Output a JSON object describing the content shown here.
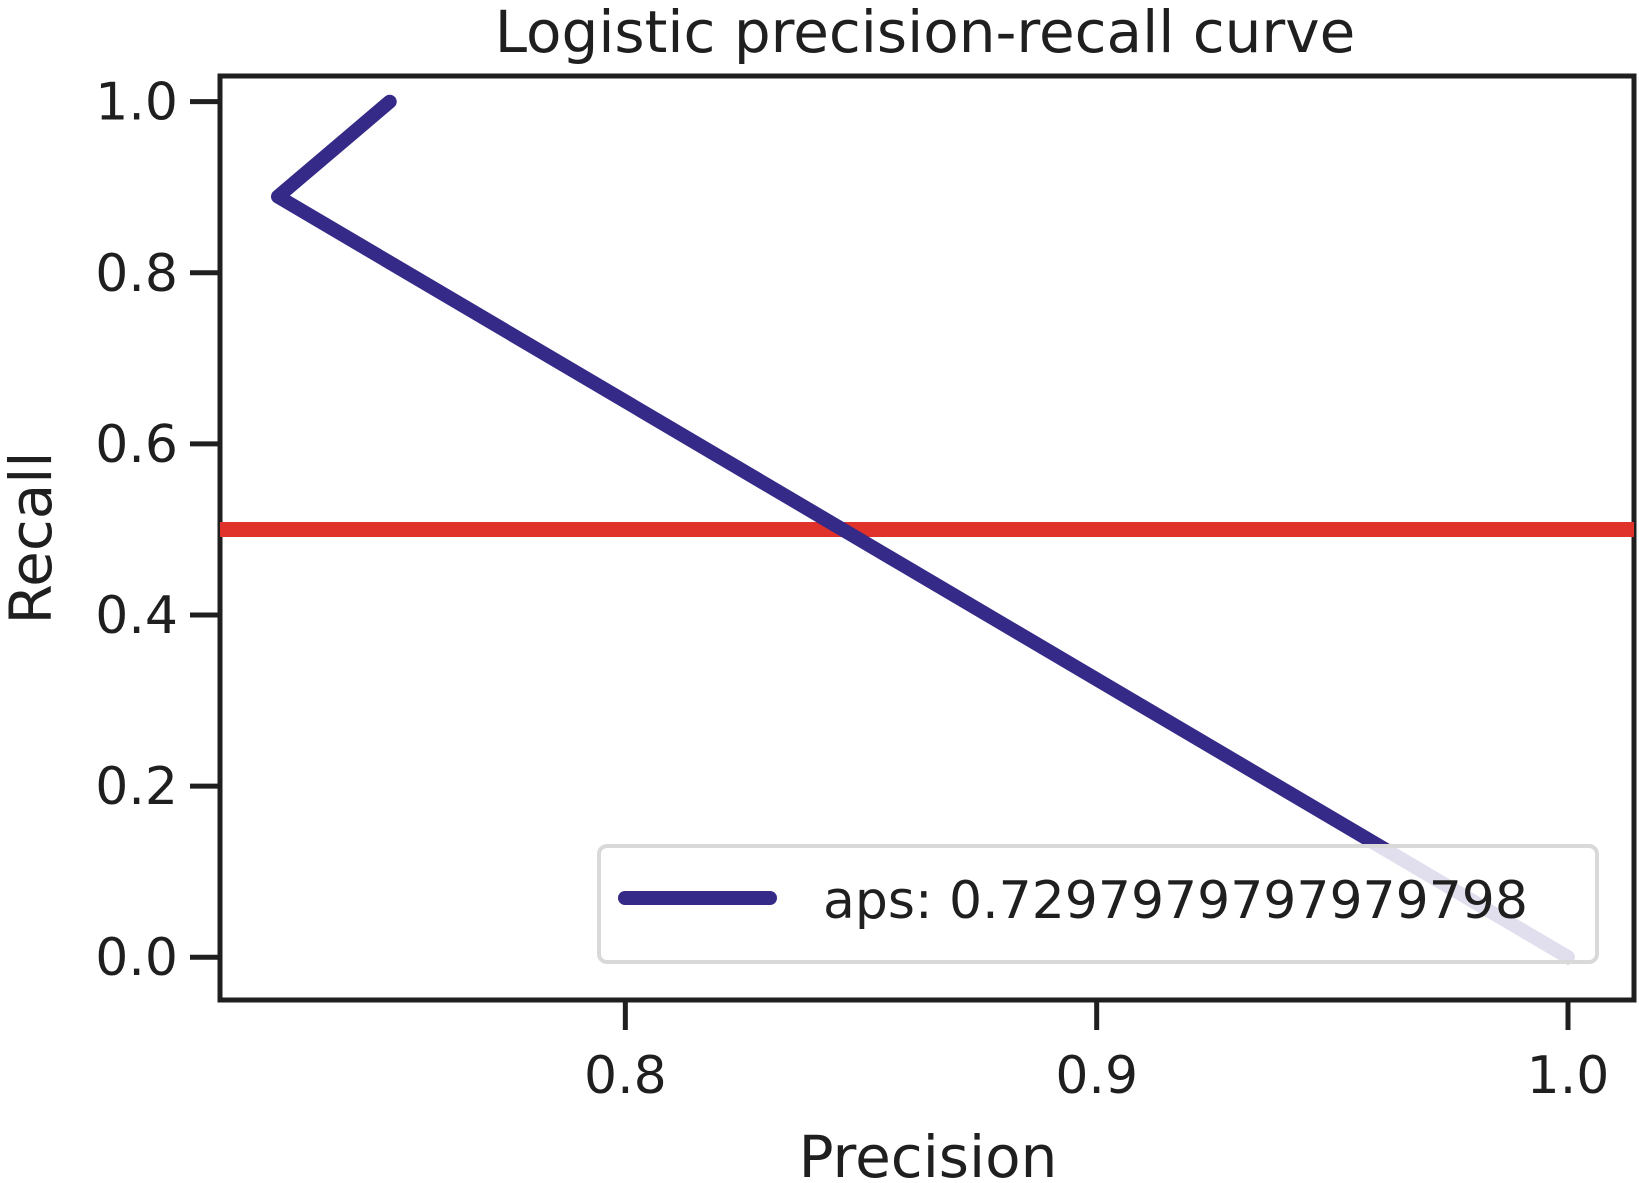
{
  "chart_data": {
    "type": "line",
    "title": "Logistic precision-recall curve",
    "xlabel": "Precision",
    "ylabel": "Recall",
    "xlim": [
      0.714,
      1.014
    ],
    "ylim": [
      -0.05,
      1.03
    ],
    "x_ticks": [
      {
        "value": 0.8,
        "label": "0.8"
      },
      {
        "value": 0.9,
        "label": "0.9"
      },
      {
        "value": 1.0,
        "label": "1.0"
      }
    ],
    "y_ticks": [
      {
        "value": 0.0,
        "label": "0.0"
      },
      {
        "value": 0.2,
        "label": "0.2"
      },
      {
        "value": 0.4,
        "label": "0.4"
      },
      {
        "value": 0.6,
        "label": "0.6"
      },
      {
        "value": 0.8,
        "label": "0.8"
      },
      {
        "value": 1.0,
        "label": "1.0"
      }
    ],
    "grid": false,
    "legend_position": "bottom-right",
    "series": [
      {
        "name": "aps: 0.7297979797979798",
        "color": "#352a87",
        "x": [
          0.75,
          0.7263,
          1.0
        ],
        "y": [
          1.0,
          0.889,
          0.0
        ]
      }
    ],
    "reference_lines": [
      {
        "orientation": "horizontal",
        "y": 0.5,
        "color": "#e0312a"
      }
    ]
  }
}
